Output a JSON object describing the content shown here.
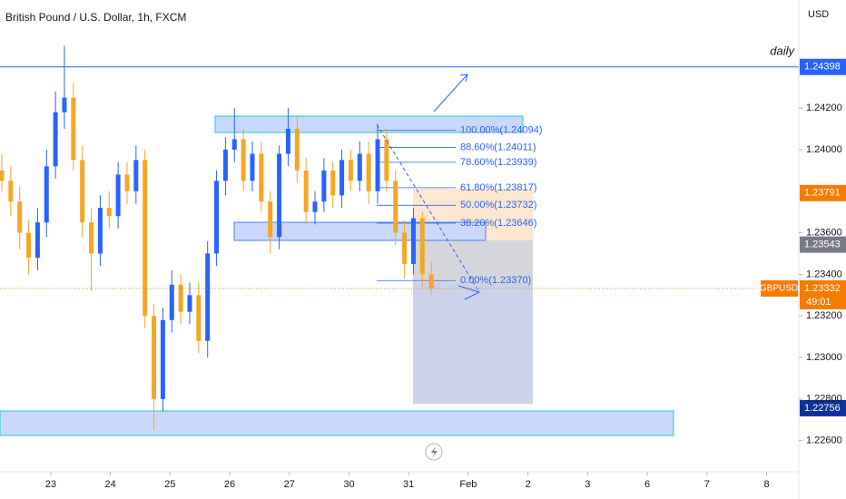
{
  "chart_data": {
    "type": "candlestick",
    "title": "British Pound / U.S. Dollar, 1h, FXCM",
    "currency": "USD",
    "annotation": "daily",
    "symbol": "GBPUSD",
    "countdown": "49:01",
    "up_color": "#2962ff",
    "down_color": "#f5a623",
    "grid": false,
    "xlim": [
      -0.85,
      12.54
    ],
    "xticks": [
      {
        "value": 0,
        "label": "23"
      },
      {
        "value": 1,
        "label": "24"
      },
      {
        "value": 2,
        "label": "25"
      },
      {
        "value": 3,
        "label": "26"
      },
      {
        "value": 4,
        "label": "27"
      },
      {
        "value": 5,
        "label": "30"
      },
      {
        "value": 6,
        "label": "31"
      },
      {
        "value": 7,
        "label": "Feb"
      },
      {
        "value": 8,
        "label": "2"
      },
      {
        "value": 9,
        "label": "3"
      },
      {
        "value": 10,
        "label": "6"
      },
      {
        "value": 11,
        "label": "7"
      },
      {
        "value": 12,
        "label": "8"
      }
    ],
    "ylim": [
      1.2245,
      1.2472
    ],
    "yticks": [
      {
        "value": 1.242,
        "label": "1.24200"
      },
      {
        "value": 1.24,
        "label": "1.24000"
      },
      {
        "value": 1.236,
        "label": "1.23600"
      },
      {
        "value": 1.234,
        "label": "1.23400"
      },
      {
        "value": 1.232,
        "label": "1.23200"
      },
      {
        "value": 1.23,
        "label": "1.23000"
      },
      {
        "value": 1.228,
        "label": "1.22800"
      },
      {
        "value": 1.226,
        "label": "1.22600"
      }
    ],
    "x": [
      -0.82,
      -0.67,
      -0.52,
      -0.37,
      -0.22,
      -0.07,
      0.08,
      0.23,
      0.38,
      0.53,
      0.68,
      0.83,
      0.98,
      1.13,
      1.28,
      1.43,
      1.58,
      1.73,
      1.88,
      2.03,
      2.18,
      2.33,
      2.48,
      2.63,
      2.78,
      2.93,
      3.08,
      3.23,
      3.38,
      3.53,
      3.68,
      3.83,
      3.98,
      4.13,
      4.28,
      4.43,
      4.58,
      4.73,
      4.88,
      5.03,
      5.18,
      5.33,
      5.48,
      5.63,
      5.78,
      5.93,
      6.08,
      6.23,
      6.38
    ],
    "open": [
      1.239,
      1.2385,
      1.2375,
      1.236,
      1.2348,
      1.2365,
      1.2392,
      1.2418,
      1.2425,
      1.2395,
      1.2365,
      1.235,
      1.2372,
      1.2368,
      1.2388,
      1.238,
      1.2395,
      1.232,
      1.228,
      1.2318,
      1.2335,
      1.2322,
      1.233,
      1.2308,
      1.235,
      1.2385,
      1.24,
      1.2405,
      1.2385,
      1.2398,
      1.2375,
      1.2358,
      1.2398,
      1.241,
      1.239,
      1.237,
      1.2375,
      1.239,
      1.2378,
      1.2395,
      1.2385,
      1.2398,
      1.238,
      1.2405,
      1.2385,
      1.236,
      1.2345,
      1.2367,
      1.234
    ],
    "high": [
      1.2398,
      1.2392,
      1.2382,
      1.2366,
      1.2372,
      1.24,
      1.2428,
      1.245,
      1.2432,
      1.2402,
      1.2372,
      1.2378,
      1.238,
      1.2394,
      1.2394,
      1.2402,
      1.24,
      1.2326,
      1.2324,
      1.2342,
      1.234,
      1.2336,
      1.2336,
      1.2356,
      1.239,
      1.2406,
      1.242,
      1.241,
      1.2404,
      1.2404,
      1.238,
      1.2402,
      1.242,
      1.2416,
      1.2396,
      1.238,
      1.2396,
      1.2394,
      1.24,
      1.24,
      1.2404,
      1.2404,
      1.2412,
      1.241,
      1.239,
      1.2366,
      1.2372,
      1.237,
      1.2346
    ],
    "low": [
      1.238,
      1.2368,
      1.2352,
      1.234,
      1.2342,
      1.2358,
      1.2386,
      1.241,
      1.239,
      1.2358,
      1.2332,
      1.2344,
      1.2362,
      1.2362,
      1.2374,
      1.2374,
      1.2314,
      1.2265,
      1.2274,
      1.2312,
      1.2316,
      1.2316,
      1.2302,
      1.23,
      1.2344,
      1.2378,
      1.2394,
      1.238,
      1.238,
      1.237,
      1.235,
      1.2352,
      1.2392,
      1.2384,
      1.2364,
      1.2364,
      1.237,
      1.2372,
      1.2372,
      1.238,
      1.238,
      1.2374,
      1.2374,
      1.238,
      1.2354,
      1.2338,
      1.234,
      1.2334,
      1.233
    ],
    "close": [
      1.2385,
      1.2375,
      1.236,
      1.2348,
      1.2365,
      1.2392,
      1.2418,
      1.2425,
      1.2395,
      1.2365,
      1.235,
      1.2372,
      1.2368,
      1.2388,
      1.238,
      1.2395,
      1.232,
      1.228,
      1.2318,
      1.2335,
      1.2322,
      1.233,
      1.2308,
      1.235,
      1.2385,
      1.24,
      1.2405,
      1.2385,
      1.2398,
      1.2375,
      1.2358,
      1.2398,
      1.241,
      1.239,
      1.237,
      1.2375,
      1.239,
      1.2378,
      1.2395,
      1.2385,
      1.2398,
      1.238,
      1.2405,
      1.2385,
      1.236,
      1.2345,
      1.2367,
      1.234,
      1.23332
    ],
    "fib_levels": [
      {
        "value": 1.24094,
        "label": "100.00%(1.24094)"
      },
      {
        "value": 1.24011,
        "label": "88.60%(1.24011)"
      },
      {
        "value": 1.23939,
        "label": "78.60%(1.23939)"
      },
      {
        "value": 1.23817,
        "label": "61.80%(1.23817)"
      },
      {
        "value": 1.23732,
        "label": "50.00%(1.23732)"
      },
      {
        "value": 1.23646,
        "label": "38.20%(1.23646)"
      },
      {
        "value": 1.2337,
        "label": "0.00%(1.23370)"
      }
    ],
    "price_tags": [
      {
        "value": 1.24398,
        "color": "#2962ff"
      },
      {
        "value": 1.23791,
        "color": "#f57c00"
      },
      {
        "value": 1.23543,
        "color": "#787b86"
      },
      {
        "value": 1.23332,
        "color": "#f57c00"
      },
      {
        "value": 1.22756,
        "color": "#0c3299"
      }
    ]
  }
}
